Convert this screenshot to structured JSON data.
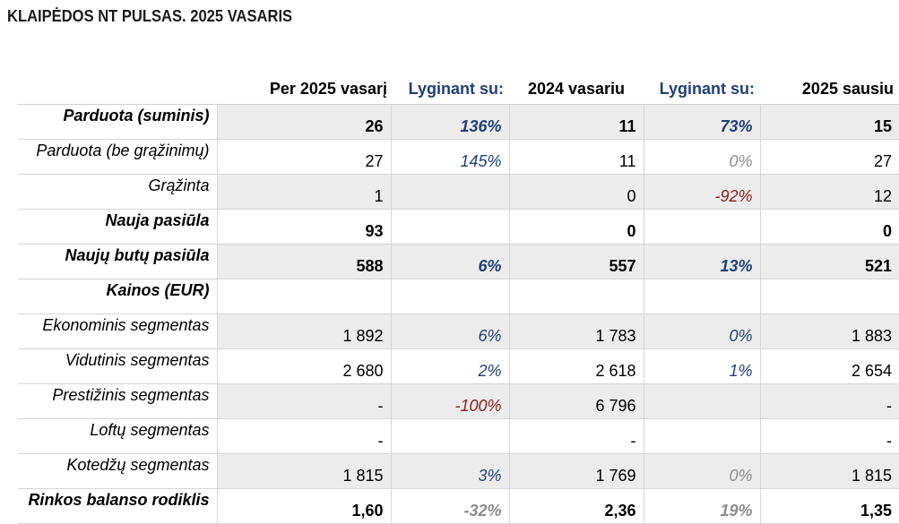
{
  "title": "KLAIPĖDOS NT PULSAS. 2025 VASARIS",
  "headers": [
    "",
    "Per 2025 vasarį",
    "Lyginant su:",
    "2024 vasariu",
    "Lyginant su:",
    "2025 sausiu"
  ],
  "colors": {
    "positive": "#1f3f7a",
    "negative": "#8b1a1a",
    "neutral": "#8c8c8c",
    "shade": "#ececec"
  },
  "rows": [
    {
      "label": "Parduota (suminis)",
      "bold": true,
      "shade": true,
      "cur": "26",
      "pct1": "136%",
      "pct1_tone": "pos",
      "prev_year": "11",
      "pct2": "73%",
      "pct2_tone": "pos",
      "prev_month": "15"
    },
    {
      "label": "Parduota (be grąžinimų)",
      "bold": false,
      "shade": false,
      "cur": "27",
      "pct1": "145%",
      "pct1_tone": "pos",
      "prev_year": "11",
      "pct2": "0%",
      "pct2_tone": "neu",
      "prev_month": "27"
    },
    {
      "label": "Grąžinta",
      "bold": false,
      "shade": true,
      "cur": "1",
      "pct1": "",
      "pct1_tone": "",
      "prev_year": "0",
      "pct2": "-92%",
      "pct2_tone": "neg",
      "prev_month": "12"
    },
    {
      "label": "Nauja pasiūla",
      "bold": true,
      "shade": false,
      "cur": "93",
      "pct1": "",
      "pct1_tone": "",
      "prev_year": "0",
      "pct2": "",
      "pct2_tone": "",
      "prev_month": "0"
    },
    {
      "label": "Naujų butų pasiūla",
      "bold": true,
      "shade": true,
      "cur": "588",
      "pct1": "6%",
      "pct1_tone": "pos",
      "prev_year": "557",
      "pct2": "13%",
      "pct2_tone": "pos",
      "prev_month": "521"
    },
    {
      "label": "Kainos (EUR)",
      "bold": true,
      "shade": false,
      "cur": "",
      "pct1": "",
      "pct1_tone": "",
      "prev_year": "",
      "pct2": "",
      "pct2_tone": "",
      "prev_month": ""
    },
    {
      "label": "Ekonominis segmentas",
      "bold": false,
      "shade": true,
      "cur": "1 892",
      "pct1": "6%",
      "pct1_tone": "pos",
      "prev_year": "1 783",
      "pct2": "0%",
      "pct2_tone": "pos",
      "prev_month": "1 883"
    },
    {
      "label": "Vidutinis segmentas",
      "bold": false,
      "shade": false,
      "cur": "2 680",
      "pct1": "2%",
      "pct1_tone": "pos",
      "prev_year": "2 618",
      "pct2": "1%",
      "pct2_tone": "pos",
      "prev_month": "2 654"
    },
    {
      "label": "Prestižinis segmentas",
      "bold": false,
      "shade": true,
      "cur": "-",
      "pct1": "-100%",
      "pct1_tone": "neg",
      "prev_year": "6 796",
      "pct2": "",
      "pct2_tone": "",
      "prev_month": "-"
    },
    {
      "label": "Loftų segmentas",
      "bold": false,
      "shade": false,
      "cur": "-",
      "pct1": "",
      "pct1_tone": "",
      "prev_year": "-",
      "pct2": "",
      "pct2_tone": "",
      "prev_month": "-"
    },
    {
      "label": "Kotedžų segmentas",
      "bold": false,
      "shade": true,
      "cur": "1 815",
      "pct1": "3%",
      "pct1_tone": "pos",
      "prev_year": "1 769",
      "pct2": "0%",
      "pct2_tone": "neu",
      "prev_month": "1 815"
    },
    {
      "label": "Rinkos balanso rodiklis",
      "bold": true,
      "shade": false,
      "cur": "1,60",
      "pct1": "-32%",
      "pct1_tone": "neu",
      "prev_year": "2,36",
      "pct2": "19%",
      "pct2_tone": "neu",
      "prev_month": "1,35"
    }
  ]
}
